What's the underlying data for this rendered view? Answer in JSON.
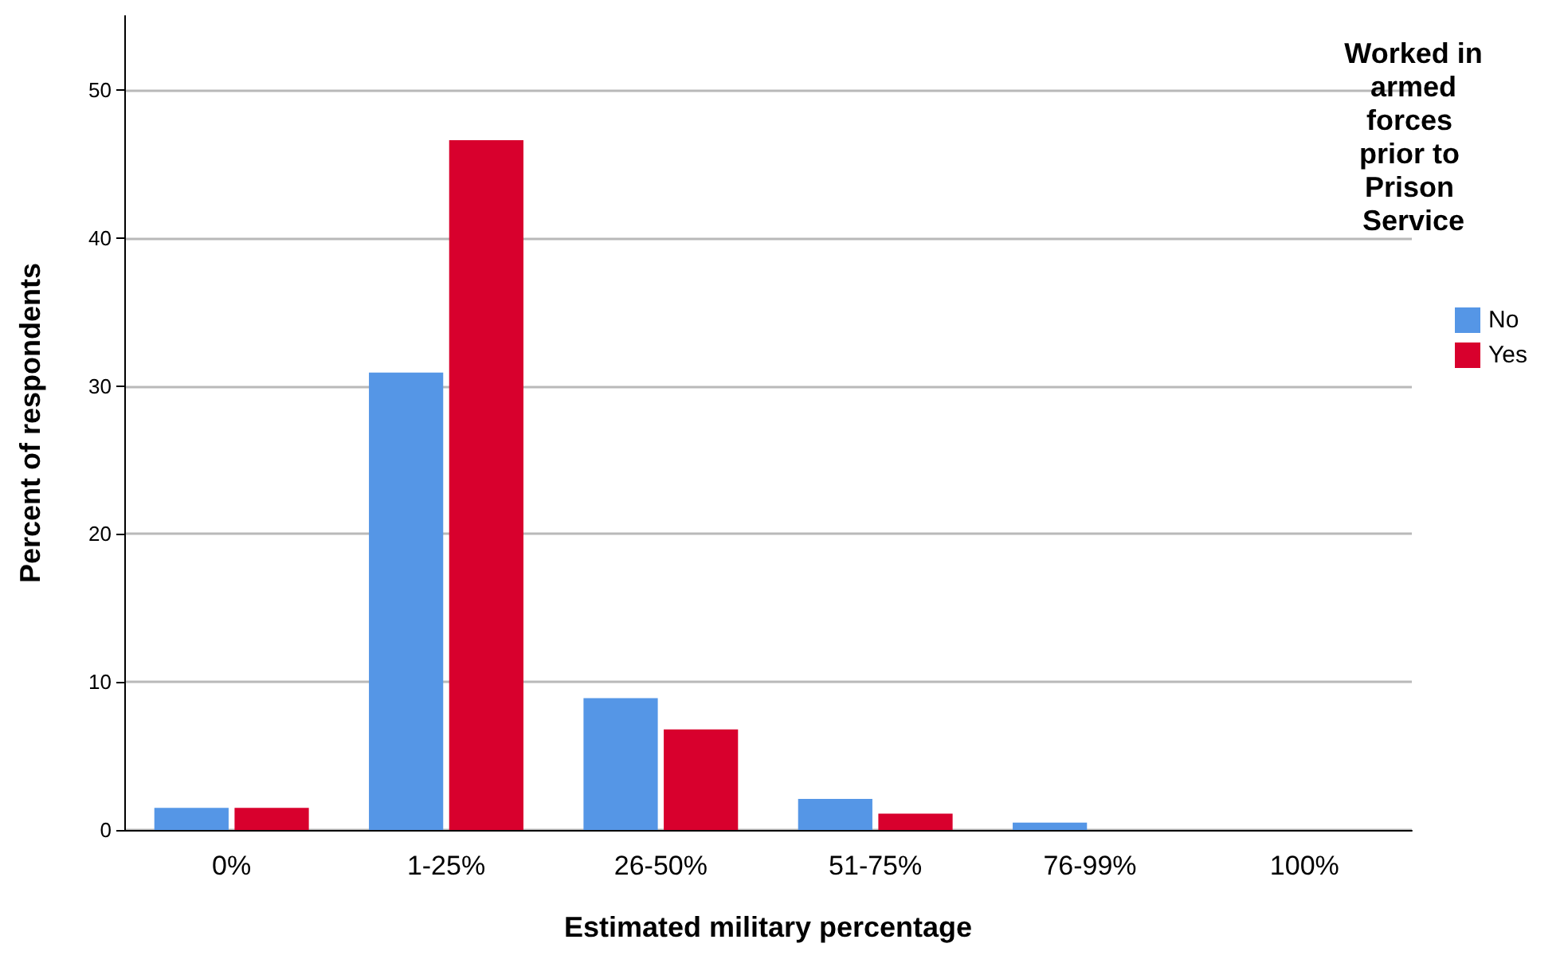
{
  "chart_data": {
    "type": "bar",
    "xlabel": "Estimated military percentage",
    "ylabel": "Percent of respondents",
    "legend_title": "Worked in armed forces prior to Prison Service",
    "categories": [
      "0%",
      "1-25%",
      "26-50%",
      "51-75%",
      "76-99%",
      "100%"
    ],
    "series": [
      {
        "name": "No",
        "color": "#5596e6",
        "values": [
          1.5,
          30.9,
          8.9,
          2.1,
          0.5,
          null
        ]
      },
      {
        "name": "Yes",
        "color": "#d8002d",
        "values": [
          1.5,
          46.6,
          6.8,
          1.1,
          null,
          null
        ]
      }
    ],
    "ylim": [
      0,
      55
    ],
    "yticks": [
      0,
      10,
      20,
      30,
      40,
      50
    ],
    "grid": "y",
    "legend": "top right"
  }
}
